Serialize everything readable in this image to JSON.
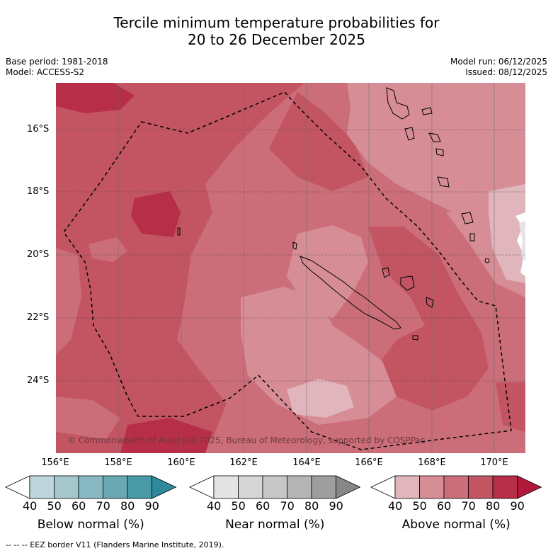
{
  "title": {
    "line1": "Tercile minimum temperature probabilities for",
    "line2": "20 to 26 December 2025"
  },
  "meta": {
    "base_period": "Base period: 1981-2018",
    "model": "Model: ACCESS-S2",
    "model_run": "Model run: 06/12/2025",
    "issued": "Issued: 08/12/2025"
  },
  "map": {
    "lat_labels": [
      "16°S",
      "18°S",
      "20°S",
      "22°S",
      "24°S"
    ],
    "lon_labels": [
      "156°E",
      "158°E",
      "160°E",
      "162°E",
      "164°E",
      "166°E",
      "168°E",
      "170°E"
    ],
    "copyright": "© Commonwealth of Australia 2025, Bureau of Meteorology, supported by COSPPac"
  },
  "colorbars": [
    {
      "title": "Below normal (%)",
      "ticks": [
        "40",
        "50",
        "60",
        "70",
        "80",
        "90"
      ],
      "colors": [
        "#bdd5db",
        "#a3c7cd",
        "#88b8c1",
        "#6aa8b4",
        "#4a99a7",
        "#2e8a9a"
      ]
    },
    {
      "title": "Near normal (%)",
      "ticks": [
        "40",
        "50",
        "60",
        "70",
        "80",
        "90"
      ],
      "colors": [
        "#e4e4e4",
        "#d6d6d6",
        "#c7c7c7",
        "#b5b5b5",
        "#9e9e9e",
        "#878787"
      ]
    },
    {
      "title": "Above normal (%)",
      "ticks": [
        "40",
        "50",
        "60",
        "70",
        "80",
        "90"
      ],
      "colors": [
        "#e0b5bb",
        "#d68d96",
        "#cc6e79",
        "#c35563",
        "#b72e48",
        "#b0193a"
      ]
    }
  ],
  "footnote": "--  --  -- EEZ border V11 (Flanders Marine Institute, 2019)."
}
